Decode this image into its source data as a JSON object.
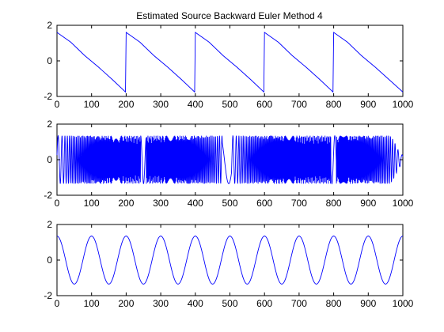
{
  "title": "Estimated Source Backward Euler Method 4",
  "colors": {
    "line": "#0000ff",
    "axes": "#000000",
    "background": "#ffffff"
  },
  "chart_data": [
    {
      "type": "line",
      "title": "Estimated Source Backward Euler Method 4",
      "xlim": [
        0,
        1000
      ],
      "ylim": [
        -2,
        2
      ],
      "xticks": [
        0,
        100,
        200,
        300,
        400,
        500,
        600,
        700,
        800,
        900,
        1000
      ],
      "yticks": [
        -2,
        0,
        2
      ],
      "grid": false,
      "description_of_signal": "sawtooth",
      "series": [
        {
          "x": [
            0,
            40,
            80,
            120,
            160,
            198,
            200,
            240,
            280,
            320,
            360,
            398,
            400,
            440,
            480,
            520,
            560,
            598,
            600,
            640,
            680,
            720,
            760,
            798,
            800,
            840,
            880,
            920,
            960,
            1000
          ],
          "values": [
            1.6,
            1.05,
            0.3,
            -0.35,
            -1.05,
            -1.75,
            1.6,
            1.05,
            0.3,
            -0.35,
            -1.05,
            -1.75,
            1.6,
            1.05,
            0.3,
            -0.35,
            -1.05,
            -1.75,
            1.6,
            1.05,
            0.3,
            -0.35,
            -1.05,
            -1.75,
            1.6,
            1.05,
            0.3,
            -0.35,
            -1.05,
            -1.75
          ]
        }
      ]
    },
    {
      "type": "line",
      "xlim": [
        0,
        1000
      ],
      "ylim": [
        -2,
        2
      ],
      "xticks": [
        0,
        100,
        200,
        300,
        400,
        500,
        600,
        700,
        800,
        900,
        1000
      ],
      "yticks": [
        -2,
        0,
        2
      ],
      "grid": false,
      "description_of_signal": "chirp",
      "series": [
        {
          "amplitude": 1.35,
          "x": [
            0,
            100,
            200,
            250,
            300,
            400,
            450,
            480,
            500,
            520,
            600,
            700,
            800,
            850,
            900,
            950,
            1000
          ],
          "values": [
            0,
            0,
            0,
            0,
            0,
            0,
            0,
            0,
            0,
            0,
            0,
            0,
            0,
            0,
            0,
            0,
            0
          ]
        }
      ]
    },
    {
      "type": "line",
      "xlim": [
        0,
        1000
      ],
      "ylim": [
        -2,
        2
      ],
      "xticks": [
        0,
        100,
        200,
        300,
        400,
        500,
        600,
        700,
        800,
        900,
        1000
      ],
      "yticks": [
        -2,
        0,
        2
      ],
      "grid": false,
      "description_of_signal": "sinusoid",
      "series": [
        {
          "x": [
            0,
            10,
            20,
            35,
            50,
            65,
            80,
            90,
            100,
            110,
            120,
            135,
            150,
            165,
            180,
            190,
            200,
            220,
            250,
            280,
            300,
            320,
            350,
            380,
            400,
            420,
            450,
            480,
            500,
            520,
            550,
            580,
            600,
            620,
            650,
            680,
            700,
            720,
            750,
            780,
            800,
            820,
            850,
            880,
            900,
            920,
            950,
            980,
            1000
          ],
          "values": [
            1.35,
            1.0,
            0.45,
            -0.45,
            -1.35,
            -0.6,
            0.4,
            1.0,
            1.35,
            1.0,
            0.45,
            -0.45,
            -1.35,
            -0.6,
            0.4,
            1.0,
            1.35,
            0.5,
            -1.35,
            0.5,
            1.35,
            0.5,
            -1.35,
            0.5,
            1.35,
            0.5,
            -1.35,
            0.5,
            1.35,
            0.5,
            -1.35,
            0.5,
            1.35,
            0.5,
            -1.35,
            0.5,
            1.35,
            0.5,
            -1.35,
            0.5,
            1.35,
            0.5,
            -1.35,
            0.5,
            1.35,
            0.5,
            -1.35,
            0.5,
            1.35
          ]
        }
      ]
    }
  ]
}
